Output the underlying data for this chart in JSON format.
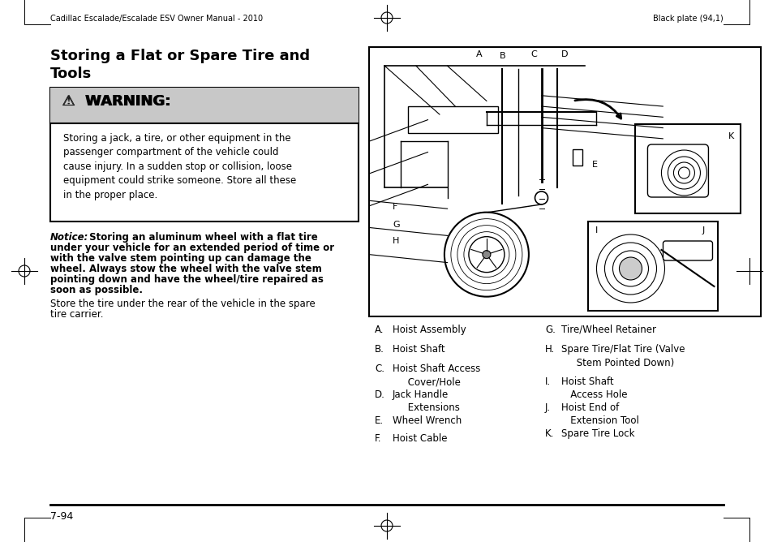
{
  "header_left": "Cadillac Escalade/Escalade ESV Owner Manual - 2010",
  "header_right": "Black plate (94,1)",
  "page_title_line1": "Storing a Flat or Spare Tire and",
  "page_title_line2": "Tools",
  "warning_header": "⚠  WARNING:",
  "warning_text": "Storing a jack, a tire, or other equipment in the\npassenger compartment of the vehicle could\ncause injury. In a sudden stop or collision, loose\nequipment could strike someone. Store all these\nin the proper place.",
  "notice_label": "Notice:",
  "notice_body": "  Storing an aluminum wheel with a flat tire\nunder your vehicle for an extended period of time or\nwith the valve stem pointing up can damage the\nwheel. Always stow the wheel with the valve stem\npointing down and have the wheel/tire repaired as\nsoon as possible.",
  "body_text": "Store the tire under the rear of the vehicle in the spare\ntire carrier.",
  "legend_left": [
    [
      "A.",
      "Hoist Assembly"
    ],
    [
      "B.",
      "Hoist Shaft"
    ],
    [
      "C.",
      "Hoist Shaft Access\n     Cover/Hole"
    ],
    [
      "D.",
      "Jack Handle\n     Extensions"
    ],
    [
      "E.",
      "Wheel Wrench"
    ],
    [
      "F.",
      "Hoist Cable"
    ]
  ],
  "legend_right": [
    [
      "G.",
      "Tire/Wheel Retainer"
    ],
    [
      "H.",
      "Spare Tire/Flat Tire (Valve\n     Stem Pointed Down)"
    ],
    [
      "I.",
      "Hoist Shaft\n   Access Hole"
    ],
    [
      "J.",
      "Hoist End of\n   Extension Tool"
    ],
    [
      "K.",
      "Spare Tire Lock"
    ]
  ],
  "footer_text": "7-94",
  "bg_color": "#ffffff",
  "warning_bg": "#c8c8c8",
  "border_color": "#000000",
  "text_color": "#000000"
}
